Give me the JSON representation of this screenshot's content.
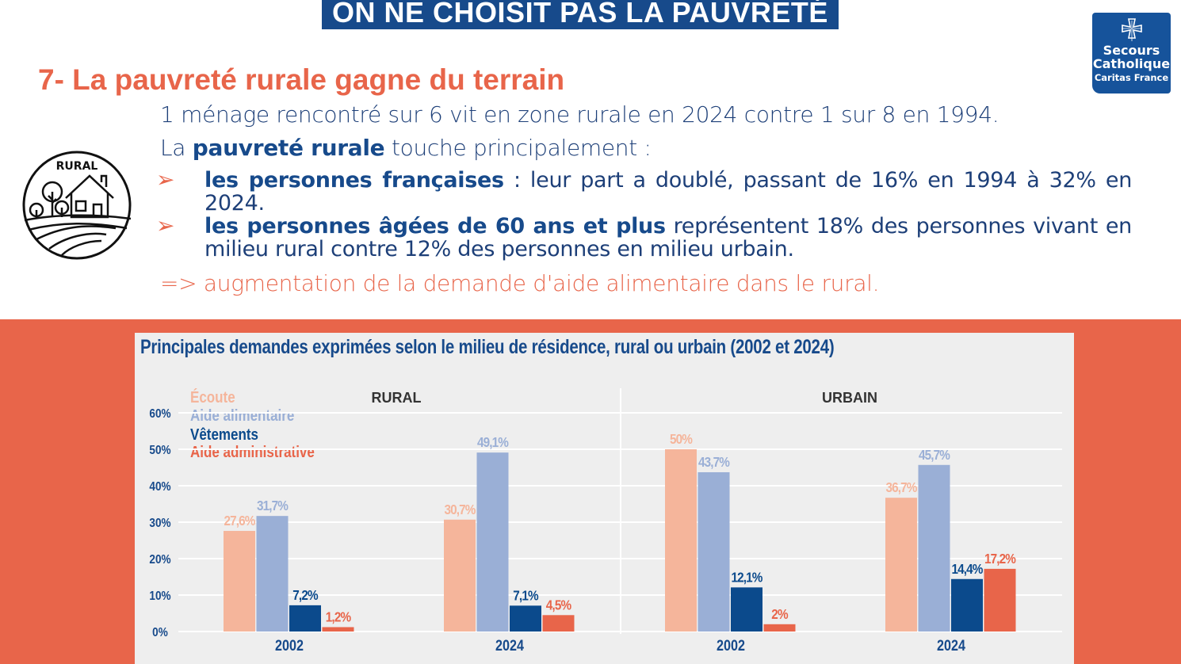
{
  "banner": {
    "title": "ON NE CHOISIT PAS LA PAUVRETÉ"
  },
  "logo": {
    "line1": "Secours",
    "line2": "Catholique",
    "line3": "Caritas France"
  },
  "heading": "7- La pauvreté rurale gagne du terrain",
  "icon": {
    "label": "RURAL",
    "name": "rural-house-icon"
  },
  "intro": "1 ménage rencontré sur 6 vit en zone rurale en 2024 contre 1 sur 8 en 1994.",
  "lead": {
    "before": "La ",
    "bold": "pauvreté rurale",
    "after": " touche principalement :"
  },
  "bullets": [
    {
      "bold": "les personnes françaises",
      "text": " : leur part a doublé, passant de 16% en 1994 à 32% en 2024."
    },
    {
      "bold": "les personnes âgées de 60 ans et plus",
      "text": " représentent 18% des personnes vivant en milieu rural contre 12% des personnes en milieu urbain."
    }
  ],
  "bullet_glyph": "➢",
  "conclusion": "=> augmentation de la demande d'aide alimentaire dans le rural.",
  "colors": {
    "accent": "#e8654a",
    "navy": "#174a8b",
    "ecoute": "#f5b59b",
    "alimentaire": "#9aafd6",
    "vetements": "#0b4a8c",
    "administrative": "#e8654a"
  },
  "chart_data": {
    "type": "bar",
    "title": "Principales demandes exprimées selon le milieu de résidence, rural ou urbain (2002 et 2024)",
    "panels": [
      "RURAL",
      "URBAIN"
    ],
    "categories": [
      "2002",
      "2024",
      "2002",
      "2024"
    ],
    "ylim": [
      0,
      60
    ],
    "yticks": [
      "0%",
      "10%",
      "20%",
      "30%",
      "40%",
      "50%",
      "60%"
    ],
    "grid": true,
    "legend": "top-left",
    "series": [
      {
        "name": "Écoute",
        "color": "#f5b59b",
        "values": [
          27.6,
          30.7,
          50,
          36.7
        ],
        "labels": [
          "27,6%",
          "30,7%",
          "50%",
          "36,7%"
        ]
      },
      {
        "name": "Aide alimentaire",
        "color": "#9aafd6",
        "values": [
          31.7,
          49.1,
          43.7,
          45.7
        ],
        "labels": [
          "31,7%",
          "49,1%",
          "43,7%",
          "45,7%"
        ]
      },
      {
        "name": "Vêtements",
        "color": "#0b4a8c",
        "values": [
          7.2,
          7.1,
          12.1,
          14.4
        ],
        "labels": [
          "7,2%",
          "7,1%",
          "12,1%",
          "14,4%"
        ]
      },
      {
        "name": "Aide administrative",
        "color": "#e8654a",
        "values": [
          1.2,
          4.5,
          2,
          17.2
        ],
        "labels": [
          "1,2%",
          "4,5%",
          "2%",
          "17,2%"
        ]
      }
    ]
  }
}
